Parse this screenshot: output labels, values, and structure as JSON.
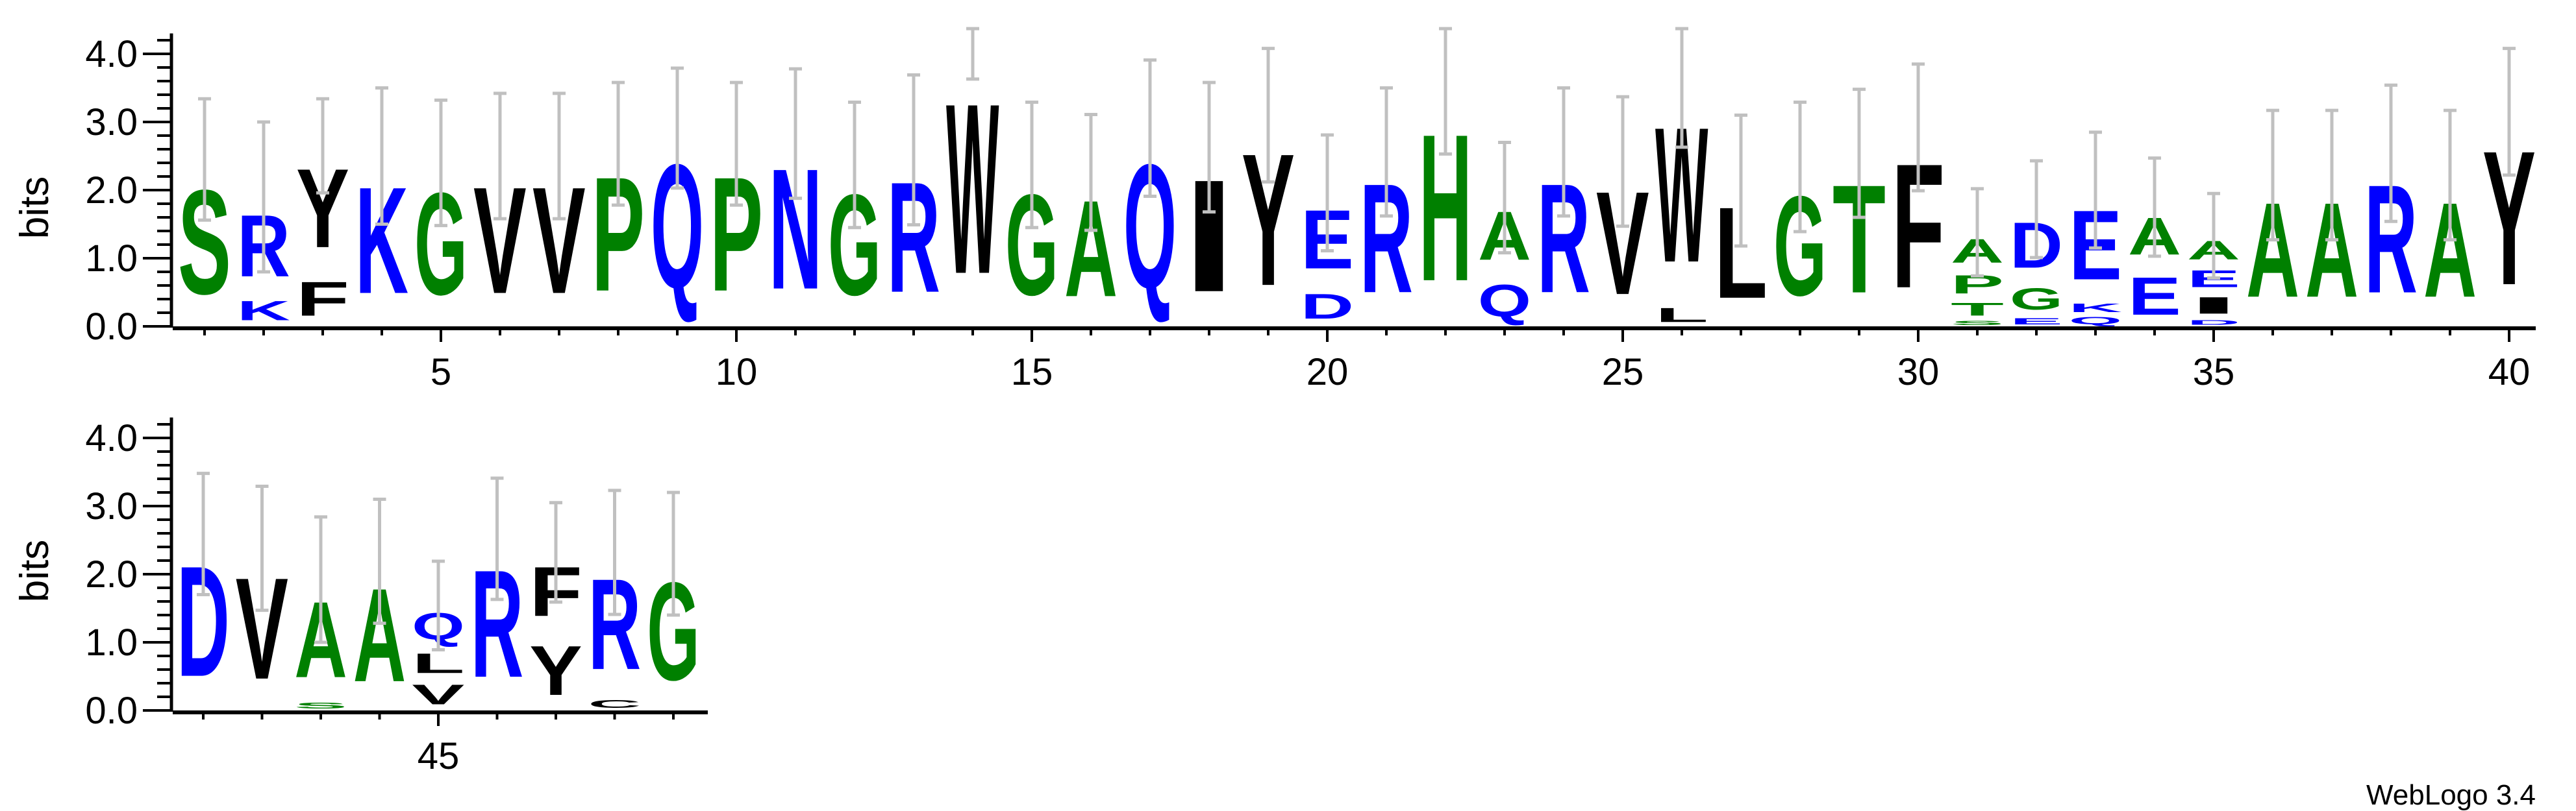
{
  "chart_data": {
    "type": "sequence-logo",
    "ylabel": "bits",
    "ylim": [
      0,
      4.3
    ],
    "yticks": [
      "0.0",
      "1.0",
      "2.0",
      "3.0",
      "4.0"
    ],
    "xtick_labels": {
      "5": "5",
      "10": "10",
      "15": "15",
      "20": "20",
      "25": "25",
      "30": "30",
      "35": "35",
      "40": "40",
      "45": "45"
    },
    "colors": {
      "green": "#008000",
      "blue": "#0000ff",
      "black": "#000000",
      "errorbar": "#c0c0c0"
    },
    "letter_colors": {
      "G": "#008000",
      "S": "#008000",
      "T": "#008000",
      "P": "#008000",
      "A": "#008000",
      "H": "#008000",
      "K": "#0000ff",
      "R": "#0000ff",
      "D": "#0000ff",
      "E": "#0000ff",
      "Q": "#0000ff",
      "N": "#0000ff",
      "Y": "#000000",
      "F": "#000000",
      "V": "#000000",
      "W": "#000000",
      "I": "#000000",
      "L": "#000000",
      "C": "#000000",
      "M": "#000000"
    },
    "rows": [
      {
        "start": 1,
        "end": 40
      },
      {
        "start": 41,
        "end": 49
      }
    ],
    "positions": [
      {
        "pos": 1,
        "err": 0.89,
        "stack": [
          [
            "S",
            2.45
          ]
        ]
      },
      {
        "pos": 2,
        "err": 1.1,
        "stack": [
          [
            "K",
            0.45
          ],
          [
            "R",
            1.45
          ]
        ]
      },
      {
        "pos": 3,
        "err": 0.69,
        "stack": [
          [
            "F",
            0.8
          ],
          [
            "Y",
            1.85
          ]
        ]
      },
      {
        "pos": 4,
        "err": 1.0,
        "stack": [
          [
            "K",
            2.5
          ]
        ]
      },
      {
        "pos": 5,
        "err": 0.92,
        "stack": [
          [
            "G",
            2.4
          ]
        ]
      },
      {
        "pos": 6,
        "err": 0.92,
        "stack": [
          [
            "V",
            2.5
          ]
        ]
      },
      {
        "pos": 7,
        "err": 0.92,
        "stack": [
          [
            "V",
            2.5
          ]
        ]
      },
      {
        "pos": 8,
        "err": 0.9,
        "stack": [
          [
            "P",
            2.68
          ]
        ]
      },
      {
        "pos": 9,
        "err": 0.88,
        "stack": [
          [
            "Q",
            2.91
          ]
        ]
      },
      {
        "pos": 10,
        "err": 0.9,
        "stack": [
          [
            "P",
            2.68
          ]
        ]
      },
      {
        "pos": 11,
        "err": 0.95,
        "stack": [
          [
            "N",
            2.83
          ]
        ]
      },
      {
        "pos": 12,
        "err": 0.92,
        "stack": [
          [
            "G",
            2.37
          ]
        ]
      },
      {
        "pos": 13,
        "err": 1.1,
        "stack": [
          [
            "R",
            2.59
          ]
        ]
      },
      {
        "pos": 14,
        "err": 0.37,
        "stack": [
          [
            "W",
            4.0
          ]
        ]
      },
      {
        "pos": 15,
        "err": 0.92,
        "stack": [
          [
            "G",
            2.37
          ]
        ]
      },
      {
        "pos": 16,
        "err": 0.85,
        "stack": [
          [
            "A",
            2.26
          ]
        ]
      },
      {
        "pos": 17,
        "err": 1.0,
        "stack": [
          [
            "Q",
            2.91
          ]
        ]
      },
      {
        "pos": 18,
        "err": 0.95,
        "stack": [
          [
            "I",
            2.63
          ]
        ]
      },
      {
        "pos": 19,
        "err": 0.98,
        "stack": [
          [
            "Y",
            3.1
          ]
        ]
      },
      {
        "pos": 20,
        "err": 0.85,
        "stack": [
          [
            "D",
            0.58
          ],
          [
            "E",
            1.38
          ]
        ]
      },
      {
        "pos": 21,
        "err": 0.94,
        "stack": [
          [
            "R",
            2.56
          ]
        ]
      },
      {
        "pos": 22,
        "err": 0.92,
        "stack": [
          [
            "H",
            3.45
          ]
        ]
      },
      {
        "pos": 23,
        "err": 0.81,
        "stack": [
          [
            "Q",
            0.75
          ],
          [
            "A",
            1.14
          ]
        ]
      },
      {
        "pos": 24,
        "err": 0.94,
        "stack": [
          [
            "R",
            2.56
          ]
        ]
      },
      {
        "pos": 25,
        "err": 0.95,
        "stack": [
          [
            "V",
            2.42
          ]
        ]
      },
      {
        "pos": 26,
        "err": 0.87,
        "stack": [
          [
            "L",
            0.33
          ],
          [
            "W",
            3.17
          ]
        ]
      },
      {
        "pos": 27,
        "err": 0.96,
        "stack": [
          [
            "L",
            2.14
          ]
        ]
      },
      {
        "pos": 28,
        "err": 0.95,
        "stack": [
          [
            "G",
            2.34
          ]
        ]
      },
      {
        "pos": 29,
        "err": 0.94,
        "stack": [
          [
            "T",
            2.54
          ]
        ]
      },
      {
        "pos": 30,
        "err": 0.93,
        "stack": [
          [
            "F",
            2.92
          ]
        ]
      },
      {
        "pos": 31,
        "err": 0.64,
        "stack": [
          [
            "S",
            0.1
          ],
          [
            "T",
            0.3
          ],
          [
            "P",
            0.43
          ],
          [
            "A",
            0.55
          ]
        ]
      },
      {
        "pos": 32,
        "err": 0.71,
        "stack": [
          [
            "E",
            0.15
          ],
          [
            "G",
            0.5
          ],
          [
            "D",
            1.07
          ]
        ]
      },
      {
        "pos": 33,
        "err": 0.85,
        "stack": [
          [
            "Q",
            0.17
          ],
          [
            "K",
            0.2
          ],
          [
            "E",
            1.63
          ]
        ]
      },
      {
        "pos": 34,
        "err": 0.72,
        "stack": [
          [
            "E",
            0.88
          ],
          [
            "A",
            0.87
          ]
        ]
      },
      {
        "pos": 35,
        "err": 0.62,
        "stack": [
          [
            "D",
            0.11
          ],
          [
            "I",
            0.39
          ],
          [
            "E",
            0.4
          ],
          [
            "A",
            0.43
          ]
        ]
      },
      {
        "pos": 36,
        "err": 0.95,
        "stack": [
          [
            "A",
            2.22
          ]
        ]
      },
      {
        "pos": 37,
        "err": 0.95,
        "stack": [
          [
            "A",
            2.22
          ]
        ]
      },
      {
        "pos": 38,
        "err": 1.0,
        "stack": [
          [
            "R",
            2.54
          ]
        ]
      },
      {
        "pos": 39,
        "err": 0.95,
        "stack": [
          [
            "A",
            2.22
          ]
        ]
      },
      {
        "pos": 40,
        "err": 0.93,
        "stack": [
          [
            "Y",
            3.15
          ]
        ]
      },
      {
        "pos": 41,
        "err": 0.89,
        "stack": [
          [
            "D",
            2.59
          ]
        ]
      },
      {
        "pos": 42,
        "err": 0.91,
        "stack": [
          [
            "V",
            2.38
          ]
        ]
      },
      {
        "pos": 43,
        "err": 0.92,
        "stack": [
          [
            "S",
            0.14
          ],
          [
            "A",
            1.78
          ]
        ]
      },
      {
        "pos": 44,
        "err": 0.91,
        "stack": [
          [
            "A",
            2.19
          ]
        ]
      },
      {
        "pos": 45,
        "err": 0.65,
        "stack": [
          [
            "V",
            0.46
          ],
          [
            "L",
            0.46
          ],
          [
            "Q",
            0.62
          ]
        ]
      },
      {
        "pos": 46,
        "err": 0.89,
        "stack": [
          [
            "R",
            2.52
          ]
        ]
      },
      {
        "pos": 47,
        "err": 0.73,
        "stack": [
          [
            "Y",
            1.16
          ],
          [
            "F",
            1.16
          ]
        ]
      },
      {
        "pos": 48,
        "err": 0.91,
        "stack": [
          [
            "C",
            0.19
          ],
          [
            "R",
            2.13
          ]
        ]
      },
      {
        "pos": 49,
        "err": 0.9,
        "stack": [
          [
            "G",
            2.3
          ]
        ]
      }
    ]
  },
  "footer": {
    "credit": "WebLogo 3.4"
  }
}
